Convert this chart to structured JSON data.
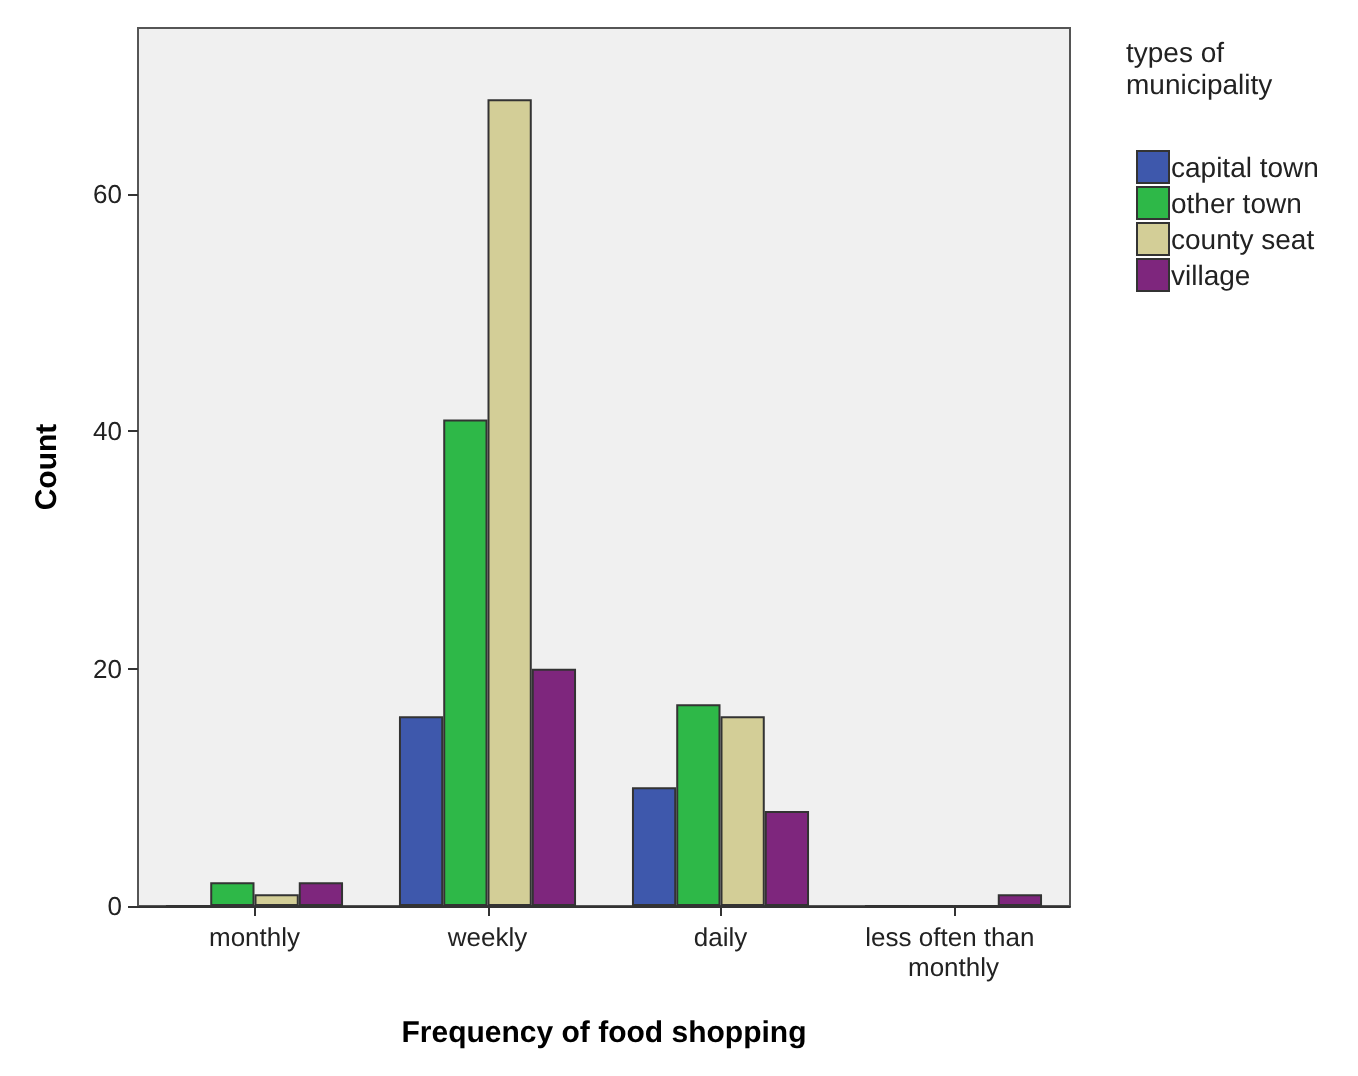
{
  "chart_data": {
    "type": "bar",
    "xlabel": "Frequency of food shopping",
    "ylabel": "Count",
    "legend_title": "types of municipality",
    "categories": [
      "monthly",
      "weekly",
      "daily",
      "less often than monthly"
    ],
    "series": [
      {
        "name": "capital town",
        "color": "#3e58ac",
        "values": [
          0,
          16,
          10,
          0
        ]
      },
      {
        "name": "other town",
        "color": "#2eb848",
        "values": [
          2,
          41,
          17,
          0
        ]
      },
      {
        "name": "county seat",
        "color": "#d3ce97",
        "values": [
          1,
          68,
          16,
          0
        ]
      },
      {
        "name": "village",
        "color": "#7e267d",
        "values": [
          2,
          20,
          8,
          1
        ]
      }
    ],
    "ylim": [
      0,
      74
    ],
    "yticks": [
      0,
      20,
      40,
      60
    ],
    "grid": false,
    "legend": "right"
  }
}
